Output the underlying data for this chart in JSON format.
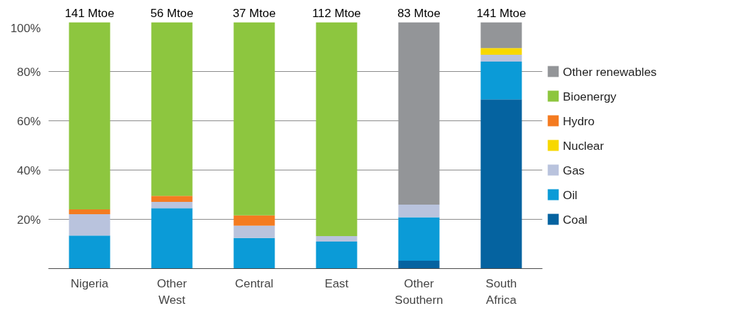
{
  "chart_data": {
    "type": "bar",
    "stacked": true,
    "categories": [
      "Nigeria",
      "Other West",
      "Central",
      "East",
      "Other Southern",
      "South Africa"
    ],
    "series": [
      {
        "name": "Coal",
        "color": "#0563a0",
        "values": [
          0,
          0,
          0,
          0,
          3.2,
          68.7
        ]
      },
      {
        "name": "Oil",
        "color": "#0b9bd7",
        "values": [
          13.4,
          24.5,
          12.4,
          11,
          17.6,
          15.3
        ]
      },
      {
        "name": "Gas",
        "color": "#b9c3dd",
        "values": [
          8.7,
          2.6,
          5,
          2.2,
          5.2,
          2.8
        ]
      },
      {
        "name": "Nuclear",
        "color": "#f7d800",
        "values": [
          0,
          0,
          0,
          0,
          0,
          2.7
        ]
      },
      {
        "name": "Hydro",
        "color": "#f47b20",
        "values": [
          1.9,
          2.4,
          4.2,
          0,
          0,
          0
        ]
      },
      {
        "name": "Bioenergy",
        "color": "#8dc63f",
        "values": [
          76,
          70.5,
          78.4,
          86.8,
          0,
          0
        ]
      },
      {
        "name": "Other renewables",
        "color": "#939598",
        "values": [
          0,
          0,
          0,
          0,
          74,
          10.5
        ]
      }
    ],
    "ylim": [
      0,
      100
    ],
    "yticks": [
      {
        "value": 0,
        "label": null
      },
      {
        "value": 20,
        "label": "20%"
      },
      {
        "value": 40,
        "label": "40%"
      },
      {
        "value": 60,
        "label": "60%"
      },
      {
        "value": 80,
        "label": "80%"
      },
      {
        "value": 100,
        "label": "100%"
      }
    ],
    "annotations": [
      {
        "text": "141 Mtoe",
        "x": "Nigeria",
        "y": 100
      },
      {
        "text": "56 Mtoe",
        "x": "Other West",
        "y": 100
      },
      {
        "text": "37 Mtoe",
        "x": "Central",
        "y": 100
      },
      {
        "text": "112 Mtoe",
        "x": "East",
        "y": 100
      },
      {
        "text": "83 Mtoe",
        "x": "Other Southern",
        "y": 100
      },
      {
        "text": "141 Mtoe",
        "x": "South Africa",
        "y": 100
      }
    ],
    "grid": "y",
    "legend": "right"
  }
}
